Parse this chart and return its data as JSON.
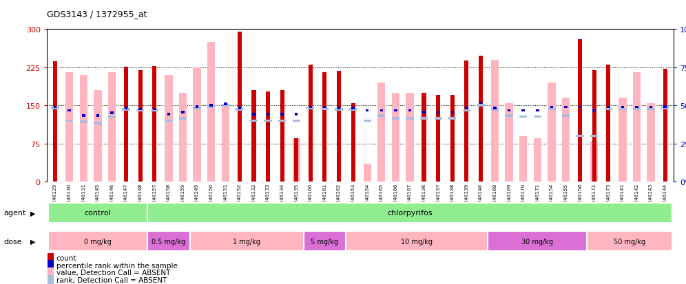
{
  "title": "GDS3143 / 1372955_at",
  "samples": [
    "GSM246129",
    "GSM246130",
    "GSM246131",
    "GSM246145",
    "GSM246146",
    "GSM246147",
    "GSM246148",
    "GSM246157",
    "GSM246158",
    "GSM246159",
    "GSM246149",
    "GSM246150",
    "GSM246151",
    "GSM246152",
    "GSM246132",
    "GSM246133",
    "GSM246134",
    "GSM246135",
    "GSM246160",
    "GSM246161",
    "GSM246162",
    "GSM246163",
    "GSM246164",
    "GSM246165",
    "GSM246166",
    "GSM246167",
    "GSM246136",
    "GSM246137",
    "GSM246138",
    "GSM246139",
    "GSM246140",
    "GSM246168",
    "GSM246169",
    "GSM246170",
    "GSM246171",
    "GSM246154",
    "GSM246155",
    "GSM246156",
    "GSM246172",
    "GSM246173",
    "GSM246141",
    "GSM246142",
    "GSM246143",
    "GSM246144"
  ],
  "count_values": [
    237,
    0,
    0,
    0,
    0,
    226,
    220,
    228,
    0,
    0,
    0,
    0,
    0,
    295,
    180,
    178,
    180,
    85,
    230,
    215,
    218,
    155,
    0,
    0,
    0,
    0,
    175,
    170,
    170,
    238,
    248,
    0,
    0,
    0,
    0,
    0,
    0,
    280,
    220,
    230,
    0,
    0,
    0,
    222
  ],
  "pink_values": [
    0,
    215,
    210,
    180,
    215,
    0,
    0,
    0,
    210,
    175,
    225,
    275,
    148,
    0,
    0,
    0,
    0,
    85,
    0,
    0,
    0,
    0,
    35,
    195,
    175,
    175,
    0,
    0,
    0,
    0,
    0,
    240,
    155,
    90,
    85,
    195,
    165,
    0,
    80,
    0,
    165,
    215,
    155,
    0
  ],
  "blue_values": [
    147,
    140,
    130,
    130,
    135,
    145,
    143,
    143,
    133,
    137,
    148,
    150,
    153,
    145,
    133,
    133,
    133,
    133,
    147,
    147,
    145,
    145,
    140,
    140,
    140,
    140,
    137,
    137,
    137,
    145,
    155,
    145,
    140,
    140,
    140,
    147,
    147,
    147,
    140,
    147,
    147,
    147,
    147,
    148
  ],
  "light_blue_values": [
    145,
    120,
    118,
    115,
    128,
    142,
    140,
    140,
    120,
    125,
    145,
    148,
    150,
    142,
    120,
    120,
    120,
    120,
    145,
    143,
    142,
    142,
    120,
    130,
    125,
    125,
    125,
    125,
    125,
    140,
    150,
    142,
    130,
    128,
    128,
    143,
    130,
    90,
    90,
    143,
    143,
    143,
    143,
    145
  ],
  "agent_groups": [
    {
      "label": "control",
      "start": 0,
      "end": 7,
      "color": "#90EE90"
    },
    {
      "label": "chlorpyrifos",
      "start": 7,
      "end": 44,
      "color": "#90EE90"
    }
  ],
  "dose_groups": [
    {
      "label": "0 mg/kg",
      "start": 0,
      "end": 7,
      "color": "#FFB6C1"
    },
    {
      "label": "0.5 mg/kg",
      "start": 7,
      "end": 10,
      "color": "#DA70D6"
    },
    {
      "label": "1 mg/kg",
      "start": 10,
      "end": 18,
      "color": "#FFB6C1"
    },
    {
      "label": "5 mg/kg",
      "start": 18,
      "end": 21,
      "color": "#DA70D6"
    },
    {
      "label": "10 mg/kg",
      "start": 21,
      "end": 31,
      "color": "#FFB6C1"
    },
    {
      "label": "30 mg/kg",
      "start": 31,
      "end": 38,
      "color": "#DA70D6"
    },
    {
      "label": "50 mg/kg",
      "start": 38,
      "end": 44,
      "color": "#FFB6C1"
    }
  ],
  "ylim_left": [
    0,
    300
  ],
  "ylim_right": [
    0,
    100
  ],
  "yticks_left": [
    0,
    75,
    150,
    225,
    300
  ],
  "yticks_right": [
    0,
    25,
    50,
    75,
    100
  ],
  "bar_color": "#CC0000",
  "pink_color": "#FFB6C1",
  "blue_color": "#0000CC",
  "light_blue_color": "#AABBDD",
  "bg_color": "#FFFFFF",
  "left_axis_color": "#CC0000",
  "right_axis_color": "#0000CC",
  "legend_items": [
    {
      "color": "#CC0000",
      "label": "count"
    },
    {
      "color": "#0000CC",
      "label": "percentile rank within the sample"
    },
    {
      "color": "#FFB6C1",
      "label": "value, Detection Call = ABSENT"
    },
    {
      "color": "#AABBDD",
      "label": "rank, Detection Call = ABSENT"
    }
  ]
}
